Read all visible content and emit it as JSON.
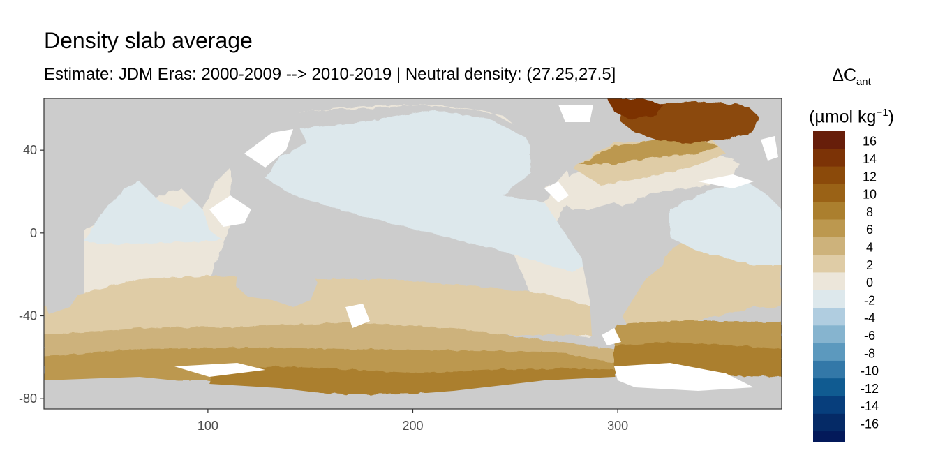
{
  "title": "Density slab average",
  "subtitle": "Estimate: JDM Eras: 2000-2009 --> 2010-2019 | Neutral density: (27.25,27.5]",
  "legend": {
    "title_symbol": "ΔC",
    "title_subscript": "ant",
    "unit_main": "(µmol kg",
    "unit_sup": "−1",
    "unit_close": ")",
    "bins": [
      {
        "label": "16",
        "color": "#671e0a"
      },
      {
        "label": "14",
        "color": "#7c3306"
      },
      {
        "label": "12",
        "color": "#8b4a0a"
      },
      {
        "label": "10",
        "color": "#9a6216"
      },
      {
        "label": "8",
        "color": "#ab7f2e"
      },
      {
        "label": "6",
        "color": "#bc984f"
      },
      {
        "label": "4",
        "color": "#cdb27b"
      },
      {
        "label": "2",
        "color": "#dfcca6"
      },
      {
        "label": "0",
        "color": "#ece6da"
      },
      {
        "label": "-2",
        "color": "#dde8ec"
      },
      {
        "label": "-4",
        "color": "#b0cde0"
      },
      {
        "label": "-6",
        "color": "#86b4cf"
      },
      {
        "label": "-8",
        "color": "#5c99be"
      },
      {
        "label": "-10",
        "color": "#3378a8"
      },
      {
        "label": "-12",
        "color": "#105b91"
      },
      {
        "label": "-14",
        "color": "#073e7c"
      },
      {
        "label": "-16",
        "color": "#052a66"
      }
    ],
    "bottom_color": "#03195a"
  },
  "axes": {
    "x_ticks": [
      {
        "label": "100",
        "value": 100
      },
      {
        "label": "200",
        "value": 200
      },
      {
        "label": "300",
        "value": 300
      }
    ],
    "y_ticks": [
      {
        "label": "40",
        "value": 40
      },
      {
        "label": "0",
        "value": 0
      },
      {
        "label": "-40",
        "value": -40
      },
      {
        "label": "-80",
        "value": -80
      }
    ],
    "x_range": [
      20,
      380
    ],
    "y_range": [
      -85,
      65
    ]
  },
  "colors": {
    "land": "#cccccc",
    "no_data": "#ffffff",
    "frame": "#333333"
  }
}
